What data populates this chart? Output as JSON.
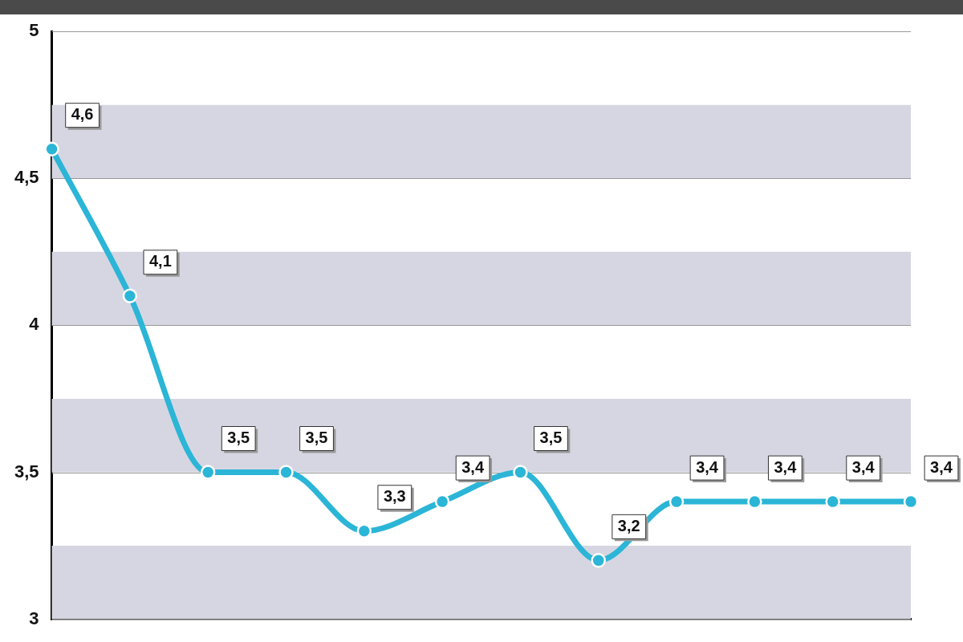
{
  "chart_data": {
    "type": "line",
    "categories": [
      null,
      null,
      null,
      null,
      null,
      null,
      null,
      null,
      null,
      null,
      null,
      null
    ],
    "values": [
      4.6,
      4.1,
      3.5,
      3.5,
      3.3,
      3.4,
      3.5,
      3.2,
      3.4,
      3.4,
      3.4,
      3.4
    ],
    "value_labels": [
      "4,6",
      "4,1",
      "3,5",
      "3,5",
      "3,3",
      "3,4",
      "3,5",
      "3,2",
      "3,4",
      "3,4",
      "3,4",
      "3,4"
    ],
    "color": "#2bb5d6",
    "ylim": [
      3,
      5
    ],
    "yticks": [
      {
        "value": 3,
        "label": "3"
      },
      {
        "value": 3.5,
        "label": "3,5"
      },
      {
        "value": 4,
        "label": "4"
      },
      {
        "value": 4.5,
        "label": "4,5"
      },
      {
        "value": 5,
        "label": "5"
      }
    ],
    "grid": "y",
    "marker": "circle",
    "line_style": "solid",
    "legend": false,
    "bands": [
      {
        "axis": "y",
        "from": 3,
        "to": 3.25,
        "color": "#d6d6e2"
      },
      {
        "axis": "y",
        "from": 3.5,
        "to": 3.75,
        "color": "#d6d6e2"
      },
      {
        "axis": "y",
        "from": 4,
        "to": 4.25,
        "color": "#d6d6e2"
      },
      {
        "axis": "y",
        "from": 4.5,
        "to": 4.75,
        "color": "#d6d6e2"
      }
    ]
  }
}
